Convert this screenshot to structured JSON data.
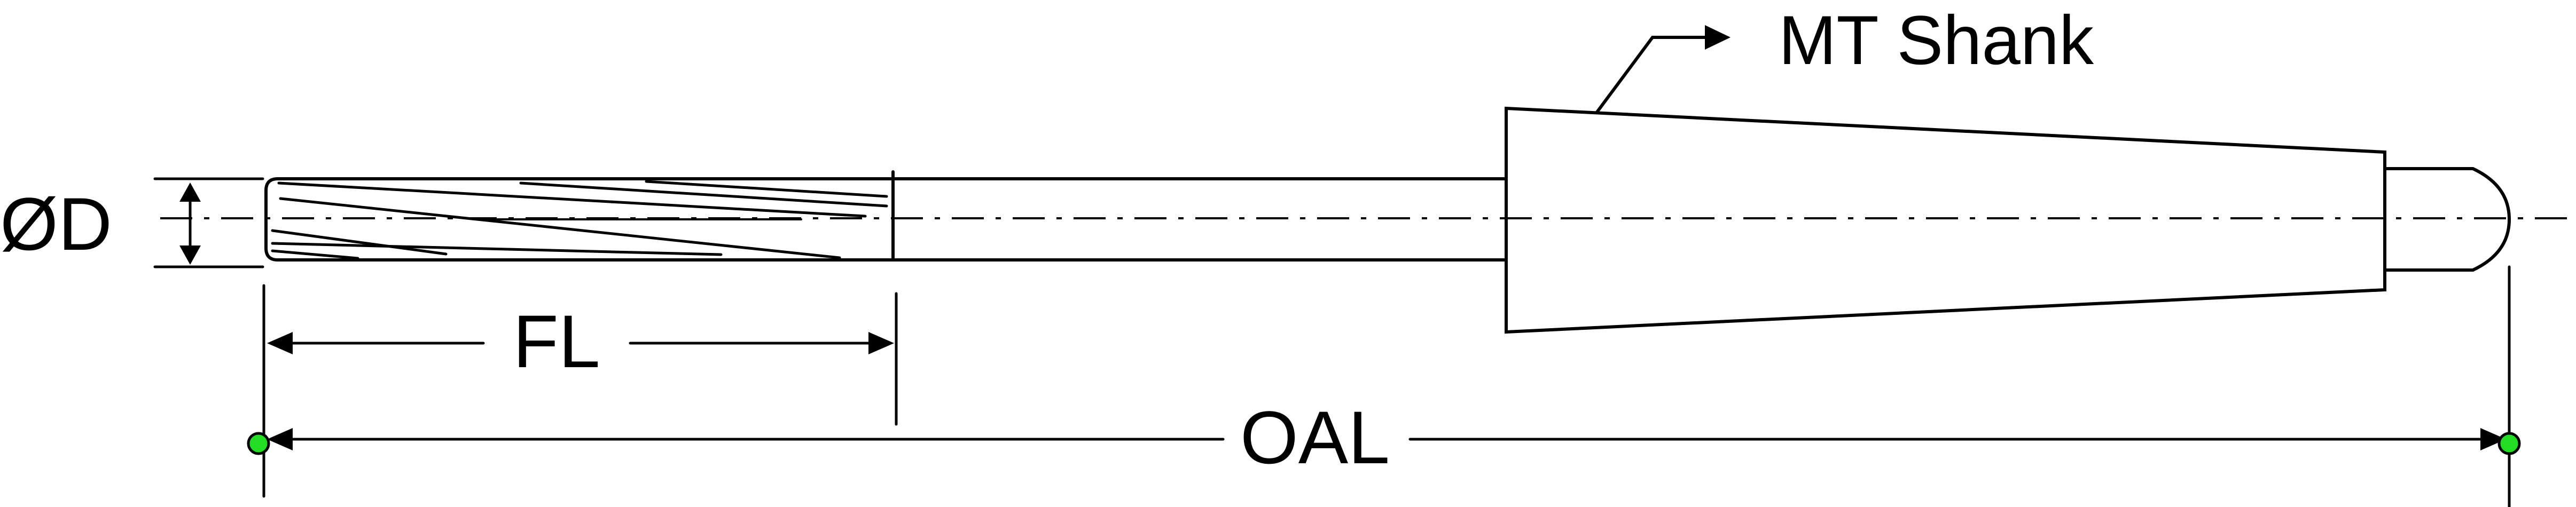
{
  "labels": {
    "diameter": "ØD",
    "flute_length": "FL",
    "overall_length": "OAL",
    "shank": "MT Shank"
  },
  "colors": {
    "line": "#000000",
    "background": "#ffffff",
    "endpoint_marker": "#22dd22"
  }
}
